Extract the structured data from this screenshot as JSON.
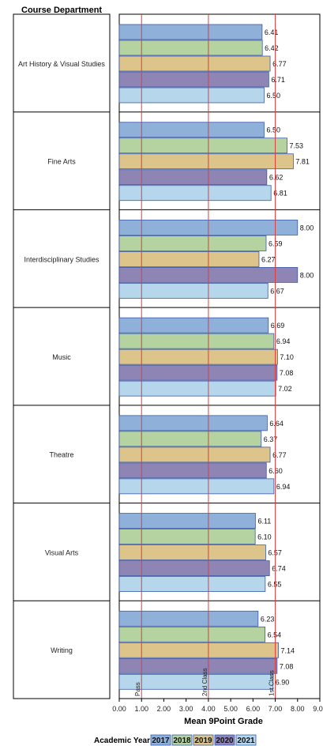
{
  "chart_data": {
    "type": "bar",
    "orientation": "horizontal",
    "title": "Course Department",
    "xlabel": "Mean 9Point Grade",
    "xlim": [
      0,
      9
    ],
    "xticks": [
      "0.00",
      "1.00",
      "2.00",
      "3.00",
      "4.00",
      "5.00",
      "6.00",
      "7.00",
      "8.00",
      "9.00"
    ],
    "categories": [
      "Art History & Visual Studies",
      "Fine Arts",
      "Interdisciplinary Studies",
      "Music",
      "Theatre",
      "Visual Arts",
      "Writing"
    ],
    "series": [
      {
        "name": "2017",
        "color": "#8fb0d9",
        "values": [
          6.41,
          6.5,
          8.0,
          6.69,
          6.64,
          6.11,
          6.23
        ],
        "labels": [
          "6.41",
          "6.50",
          "8.00",
          "6.69",
          "6.64",
          "6.11",
          "6.23"
        ]
      },
      {
        "name": "2018",
        "color": "#b5d3a0",
        "values": [
          6.42,
          7.53,
          6.59,
          6.94,
          6.37,
          6.1,
          6.54
        ],
        "labels": [
          "6.42",
          "7.53",
          "6.59",
          "6.94",
          "6.37",
          "6.10",
          "6.54"
        ]
      },
      {
        "name": "2019",
        "color": "#dcc48a",
        "values": [
          6.77,
          7.81,
          6.27,
          7.1,
          6.77,
          6.57,
          7.14
        ],
        "labels": [
          "6.77",
          "7.81",
          "6.27",
          "7.10",
          "6.77",
          "6.57",
          "7.14"
        ]
      },
      {
        "name": "2020",
        "color": "#8e85b4",
        "values": [
          6.71,
          6.62,
          8.0,
          7.08,
          6.6,
          6.74,
          7.08
        ],
        "labels": [
          "6.71",
          "6.62",
          "8.00",
          "7.08",
          "6.60",
          "6.74",
          "7.08"
        ]
      },
      {
        "name": "2021",
        "color": "#b6d6ec",
        "values": [
          6.5,
          6.81,
          6.67,
          7.02,
          6.94,
          6.55,
          6.9
        ],
        "labels": [
          "6.50",
          "6.81",
          "6.67",
          "7.02",
          "6.94",
          "6.55",
          "6.90"
        ]
      }
    ],
    "reference_lines": [
      {
        "value": 1,
        "label": "Pass"
      },
      {
        "value": 4,
        "label": "2nd Class"
      },
      {
        "value": 7,
        "label": "1st Class"
      }
    ],
    "reference_line_color": "#e03c3c",
    "legend": {
      "title": "Academic Year",
      "position": "bottom"
    }
  }
}
